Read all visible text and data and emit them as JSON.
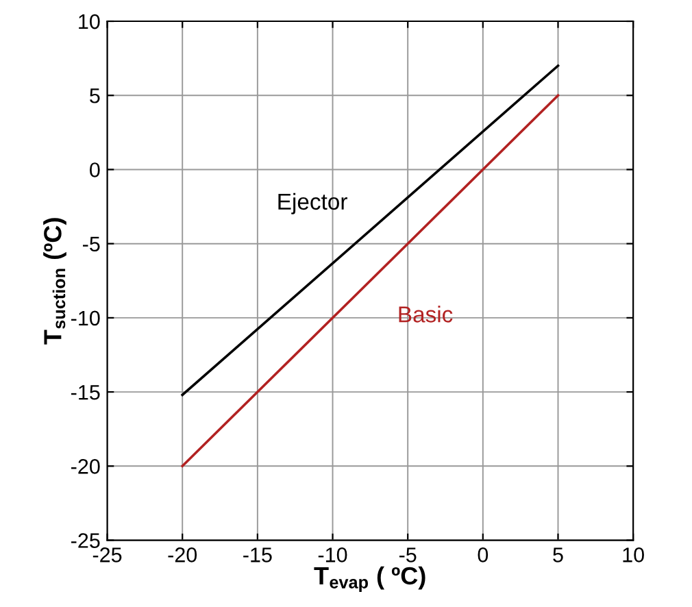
{
  "chart_data": {
    "type": "line",
    "xlabel": "T$_{evap}$ ( ºC)",
    "ylabel": "T$_{suction}$ (ºC)",
    "x": [
      -20,
      5
    ],
    "series": [
      {
        "name": "Ejector",
        "color": "#000000",
        "values": [
          -15.2,
          7
        ]
      },
      {
        "name": "Basic",
        "color": "#b22222",
        "values": [
          -20,
          5
        ]
      }
    ],
    "xlim": [
      -25,
      10
    ],
    "xticks": [
      -25,
      -20,
      -15,
      -10,
      -5,
      0,
      5,
      10
    ],
    "ylim": [
      -25,
      10
    ],
    "yticks": [
      -25,
      -20,
      -15,
      -10,
      -5,
      0,
      5,
      10
    ],
    "grid": true,
    "legend": false,
    "marker": "none",
    "line_style": "solid"
  }
}
